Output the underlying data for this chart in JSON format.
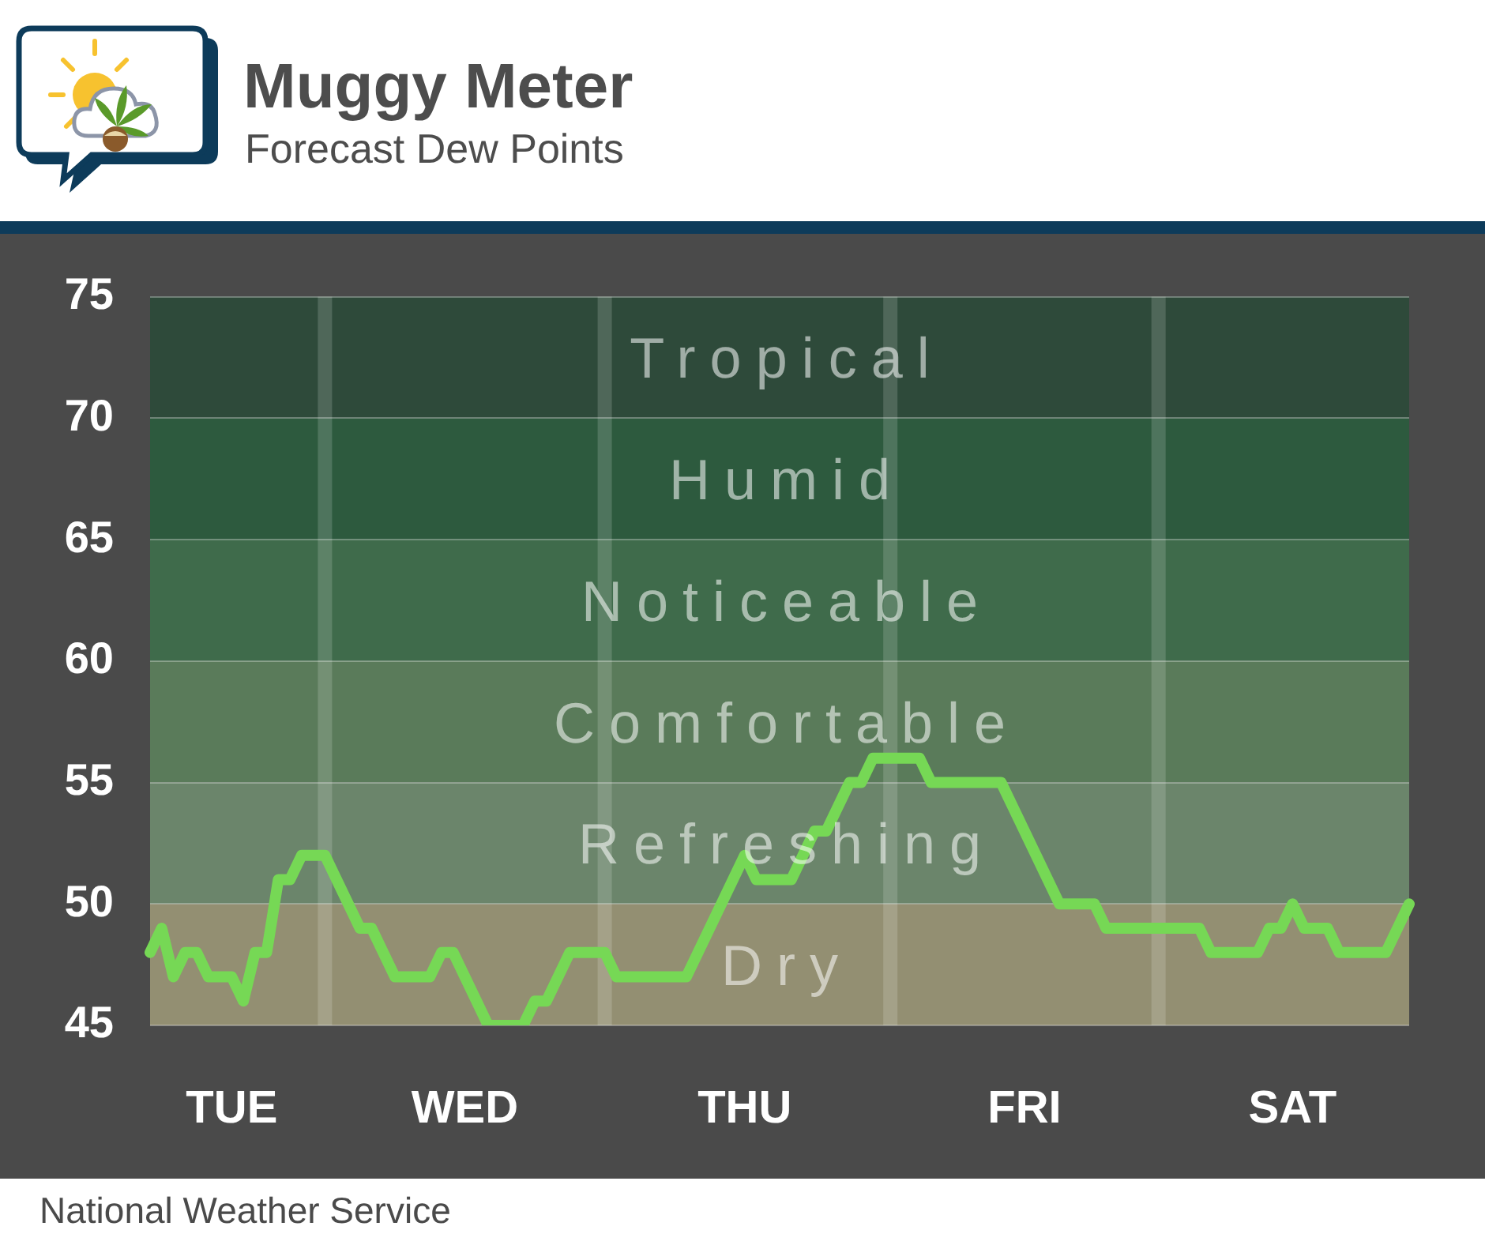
{
  "chart_data": {
    "type": "line",
    "title": "Muggy Meter",
    "subtitle": "Forecast Dew Points",
    "annotations": [
      "National Weather Service"
    ],
    "categories": [
      null,
      null,
      null,
      null,
      null,
      null,
      null,
      "TUE",
      null,
      null,
      null,
      null,
      null,
      null,
      null,
      null,
      null,
      null,
      null,
      null,
      null,
      null,
      null,
      null,
      null,
      null,
      null,
      "WED",
      null,
      null,
      null,
      null,
      null,
      null,
      null,
      null,
      null,
      null,
      null,
      null,
      null,
      null,
      null,
      null,
      null,
      null,
      null,
      null,
      null,
      null,
      null,
      "THU",
      null,
      null,
      null,
      null,
      null,
      null,
      null,
      null,
      null,
      null,
      null,
      null,
      null,
      null,
      null,
      null,
      null,
      null,
      null,
      null,
      null,
      null,
      null,
      "FRI",
      null,
      null,
      null,
      null,
      null,
      null,
      null,
      null,
      null,
      null,
      null,
      null,
      null,
      null,
      null,
      null,
      null,
      null,
      null,
      null,
      null,
      null,
      "SAT",
      null,
      null,
      null,
      null,
      null,
      null,
      null,
      null,
      null,
      null
    ],
    "series": [
      {
        "color": "#76d855",
        "values": [
          48,
          49,
          47,
          48,
          48,
          47,
          47,
          47,
          46,
          48,
          48,
          51,
          51,
          52,
          52,
          52,
          51,
          50,
          49,
          49,
          48,
          47,
          47,
          47,
          47,
          48,
          48,
          47,
          46,
          45,
          45,
          45,
          45,
          46,
          46,
          47,
          48,
          48,
          48,
          48,
          47,
          47,
          47,
          47,
          47,
          47,
          47,
          48,
          49,
          50,
          51,
          52,
          51,
          51,
          51,
          51,
          52,
          53,
          53,
          54,
          55,
          55,
          56,
          56,
          56,
          56,
          56,
          55,
          55,
          55,
          55,
          55,
          55,
          55,
          54,
          53,
          52,
          51,
          50,
          50,
          50,
          50,
          49,
          49,
          49,
          49,
          49,
          49,
          49,
          49,
          49,
          48,
          48,
          48,
          48,
          48,
          49,
          49,
          50,
          49,
          49,
          49,
          48,
          48,
          48,
          48,
          48,
          49,
          50
        ]
      }
    ],
    "ylim": [
      45,
      75
    ],
    "yticks": [
      45,
      50,
      55,
      60,
      65,
      70,
      75
    ],
    "grid": "y",
    "marker": "none",
    "bands": [
      {
        "axis": "y",
        "from": 70,
        "to": 75,
        "label": "Tropical",
        "color": "#2e4a3a"
      },
      {
        "axis": "y",
        "from": 65,
        "to": 70,
        "label": "Humid",
        "color": "#2d5a3e"
      },
      {
        "axis": "y",
        "from": 60,
        "to": 65,
        "label": "Noticeable",
        "color": "#3f6b4b"
      },
      {
        "axis": "y",
        "from": 55,
        "to": 60,
        "label": "Comfortable",
        "color": "#5a7b5a"
      },
      {
        "axis": "y",
        "from": 50,
        "to": 55,
        "label": "Refreshing",
        "color": "#6b856b"
      },
      {
        "axis": "y",
        "from": 45,
        "to": 50,
        "label": "Dry",
        "color": "#938f72"
      }
    ]
  }
}
